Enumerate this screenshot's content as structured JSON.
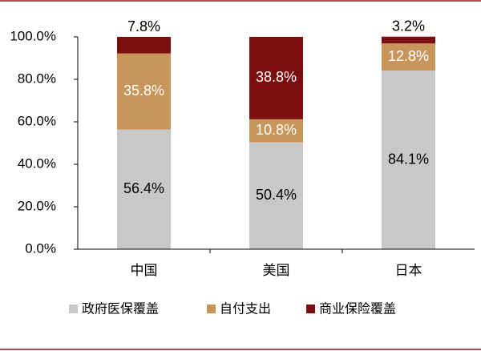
{
  "chart_data": {
    "type": "stacked_bar",
    "categories": [
      "中国",
      "美国",
      "日本"
    ],
    "series": [
      {
        "name": "政府医保覆盖",
        "color": "#c8c8c8",
        "values": [
          56.4,
          50.4,
          84.1
        ],
        "value_labels": [
          "56.4%",
          "50.4%",
          "84.1%"
        ]
      },
      {
        "name": "自付支出",
        "color": "#c8955a",
        "values": [
          35.8,
          10.8,
          12.8
        ],
        "value_labels": [
          "35.8%",
          "10.8%",
          "12.8%"
        ]
      },
      {
        "name": "商业保险覆盖",
        "color": "#7b0f0f",
        "values": [
          7.8,
          38.8,
          3.2
        ],
        "value_labels": [
          "7.8%",
          "38.8%",
          "3.2%"
        ]
      }
    ],
    "ylim": [
      0,
      100
    ],
    "yticks": [
      {
        "value": 0,
        "label": "0.0%"
      },
      {
        "value": 20,
        "label": "20.0%"
      },
      {
        "value": 40,
        "label": "40.0%"
      },
      {
        "value": 60,
        "label": "60.0%"
      },
      {
        "value": 80,
        "label": "80.0%"
      },
      {
        "value": 100,
        "label": "100.0%"
      }
    ],
    "legend": "bottom"
  }
}
